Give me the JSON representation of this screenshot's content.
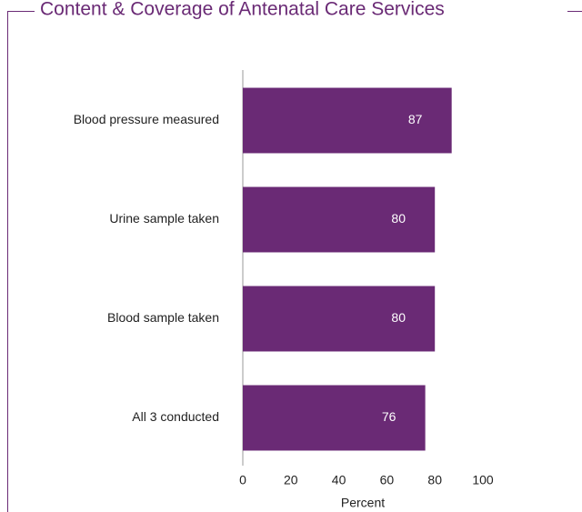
{
  "chart_data": {
    "type": "bar",
    "orientation": "horizontal",
    "title": "Content & Coverage of Antenatal Care Services",
    "categories": [
      "Blood pressure measured",
      "Urine sample taken",
      "Blood sample taken",
      "All 3 conducted"
    ],
    "values": [
      87,
      80,
      80,
      76
    ],
    "color": "#6a2a75",
    "xlabel": "Percent",
    "xlim": [
      0,
      100
    ],
    "xticks": [
      0,
      20,
      40,
      60,
      80,
      100
    ],
    "grid": false
  }
}
